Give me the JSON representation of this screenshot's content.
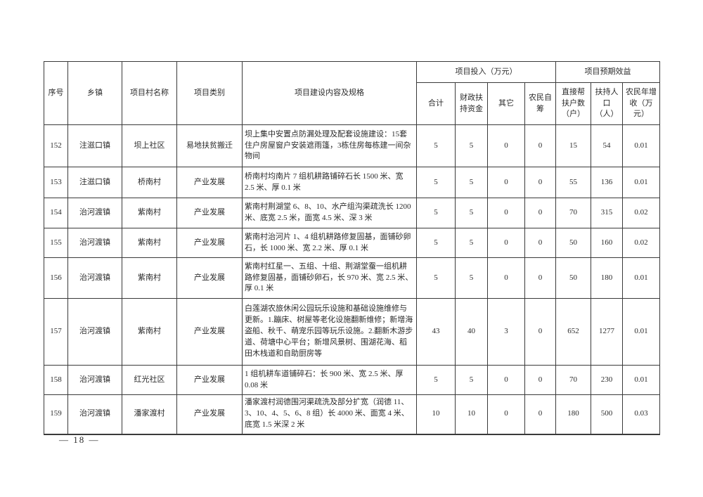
{
  "page": {
    "number_label": "— 18 —"
  },
  "table": {
    "header": {
      "no": "序号",
      "town": "乡镇",
      "village": "项目村名称",
      "category": "项目类别",
      "content": "项目建设内容及规格",
      "group_investment": "项目投入（万元）",
      "group_benefit": "项目预期效益",
      "sub_total": "合计",
      "sub_fiscal": "财政扶持资金",
      "sub_other": "其它",
      "sub_self": "农民自筹",
      "sub_households": "直接帮扶户数（户）",
      "sub_population": "扶持人口（人）",
      "sub_income": "农民年增收（万元）"
    },
    "rows": [
      {
        "no": "152",
        "town": "注滋口镇",
        "village": "坝上社区",
        "category": "易地扶贫搬迁",
        "content": "坝上集中安置点防漏处理及配套设施建设：15套住户房屋窗户安装遮雨篷，3栋住房每栋建一间杂物间",
        "total": "5",
        "fiscal": "5",
        "other": "0",
        "self": "0",
        "households": "15",
        "population": "54",
        "income": "0.01"
      },
      {
        "no": "153",
        "town": "注滋口镇",
        "village": "桥南村",
        "category": "产业发展",
        "content": "桥南村均南片 7 组机耕路铺碎石长 1500 米、宽 2.5 米、厚 0.1 米",
        "total": "5",
        "fiscal": "5",
        "other": "0",
        "self": "0",
        "households": "55",
        "population": "136",
        "income": "0.01"
      },
      {
        "no": "154",
        "town": "治河渡镇",
        "village": "紫南村",
        "category": "产业发展",
        "content": "紫南村荆湖堂 6、8、10、水产组沟渠疏洗长 1200 米、底宽 2.5 米，面宽 4.5 米、深 3 米",
        "total": "5",
        "fiscal": "5",
        "other": "0",
        "self": "0",
        "households": "70",
        "population": "315",
        "income": "0.02"
      },
      {
        "no": "155",
        "town": "治河渡镇",
        "village": "紫南村",
        "category": "产业发展",
        "content": "紫南村治河片 1、4 组机耕路修复固基，面铺砂卵石，长 1000 米、宽 2.2 米、厚 0.1 米",
        "total": "5",
        "fiscal": "5",
        "other": "0",
        "self": "0",
        "households": "50",
        "population": "160",
        "income": "0.02"
      },
      {
        "no": "156",
        "town": "治河渡镇",
        "village": "紫南村",
        "category": "产业发展",
        "content": "紫南村红星一、五组、十组、荆湖堂蚕一组机耕路修复固基，面铺砂卵石，长 970 米、宽 2.5 米、厚 0.1 米",
        "total": "5",
        "fiscal": "5",
        "other": "0",
        "self": "0",
        "households": "50",
        "population": "180",
        "income": "0.01"
      },
      {
        "no": "157",
        "town": "治河渡镇",
        "village": "紫南村",
        "category": "产业发展",
        "content": "白莲湖农旅休闲公园玩乐设施和基础设施维修与更新。1.蹦床、树屋等老化设施翻新维修；新增海盗船、秋千、萌宠乐园等玩乐设施。2.翻新木游步道、荷塘中心平台；新增风景树、围湖花海、稻田木栈道和自助厨房等",
        "total": "43",
        "fiscal": "40",
        "other": "3",
        "self": "0",
        "households": "652",
        "population": "1277",
        "income": "0.01"
      },
      {
        "no": "158",
        "town": "治河渡镇",
        "village": "红光社区",
        "category": "产业发展",
        "content": "1 组机耕车道铺碎石：长 900 米、宽 2.5 米、厚 0.08 米",
        "total": "5",
        "fiscal": "5",
        "other": "0",
        "self": "0",
        "households": "70",
        "population": "230",
        "income": "0.01"
      },
      {
        "no": "159",
        "town": "治河渡镇",
        "village": "潘家渡村",
        "category": "产业发展",
        "content": "潘家渡村润德围河渠疏洗及部分扩宽（润德 11、3、10、4、5、6、8 组）长 4000 米、面宽 4 米、底宽 1.5 米深 2 米",
        "total": "10",
        "fiscal": "10",
        "other": "0",
        "self": "0",
        "households": "180",
        "population": "500",
        "income": "0.03"
      }
    ]
  }
}
